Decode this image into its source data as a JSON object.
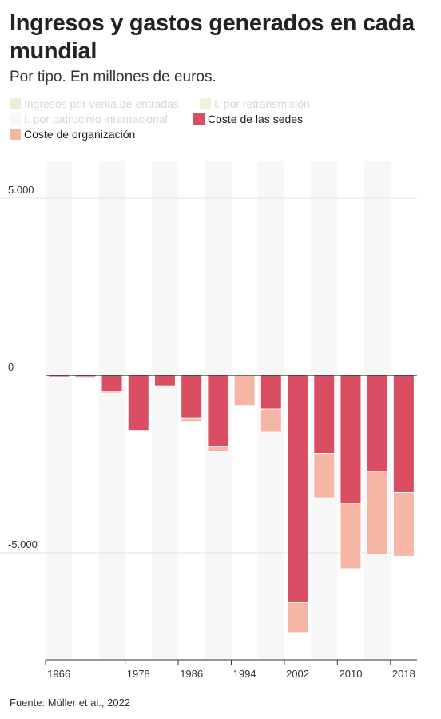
{
  "header": {
    "title": "Ingresos y gastos generados en cada mundial",
    "subtitle": "Por tipo. En millones de euros."
  },
  "legend": [
    {
      "label": "Ingresos por venta de entradas",
      "color": "#e6f0d2",
      "faded": true
    },
    {
      "label": "I. por retransmisión",
      "color": "#eef3dc",
      "faded": true
    },
    {
      "label": "I. por patrocinio internacional",
      "color": "#f7f7f7",
      "faded": true
    },
    {
      "label": "Coste de las sedes",
      "color": "#d94e63",
      "faded": false
    },
    {
      "label": "Coste de organización",
      "color": "#f6b6a6",
      "faded": false
    }
  ],
  "footer": {
    "source": "Fuente: Müller et al., 2022"
  },
  "chart_data": {
    "type": "bar",
    "stacked": true,
    "categories": [
      "1966",
      "1970",
      "1974",
      "1978",
      "1982",
      "1986",
      "1990",
      "1994",
      "1998",
      "2002",
      "2006",
      "2010",
      "2014",
      "2018"
    ],
    "x_tick_labels": [
      "1966",
      "1978",
      "1986",
      "1994",
      "2002",
      "2010",
      "2018"
    ],
    "y_ticks": [
      5000,
      0,
      -5000
    ],
    "y_tick_labels": [
      "5.000",
      "0",
      "-5.000"
    ],
    "ylim": [
      -8000,
      6000
    ],
    "series": [
      {
        "name": "Coste de las sedes",
        "color": "#d94e63",
        "values": [
          -50,
          -50,
          -450,
          -1550,
          -300,
          -1200,
          -2000,
          0,
          -950,
          -6400,
          -2200,
          -3600,
          -2700,
          -3300
        ]
      },
      {
        "name": "Coste de organización",
        "color": "#f6b6a6",
        "values": [
          -20,
          -30,
          -50,
          -30,
          -30,
          -100,
          -150,
          -850,
          -650,
          -850,
          -1250,
          -1850,
          -2350,
          -1800
        ]
      }
    ]
  }
}
